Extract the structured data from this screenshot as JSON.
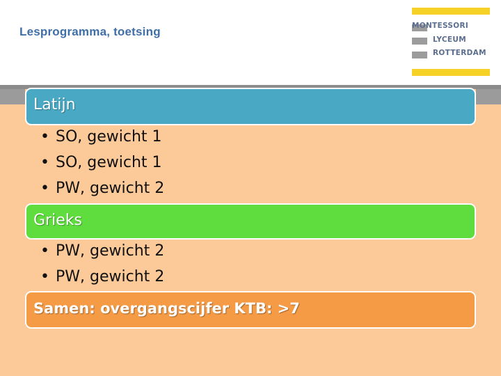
{
  "header": {
    "title": "Lesprogramma, toetsing",
    "logo_lines": [
      "MONTESSORI",
      "LYCEUM",
      "ROTTERDAM"
    ]
  },
  "sections": [
    {
      "heading": "Latijn",
      "color": "#49a9c4",
      "items": [
        "SO, gewicht 1",
        "SO, gewicht 1",
        "PW, gewicht 2"
      ]
    },
    {
      "heading": "Grieks",
      "color": "#5fdd3f",
      "items": [
        "PW, gewicht 2",
        "PW, gewicht 2"
      ]
    }
  ],
  "summary": {
    "text": "Samen: overgangscijfer KTB: >7",
    "color": "#f59b46"
  },
  "bullet_symbol": "•",
  "colors": {
    "background": "#fcc999",
    "title": "#3f6fa8",
    "logo_yellow": "#f6d228",
    "logo_gray": "#9c9c9c"
  }
}
